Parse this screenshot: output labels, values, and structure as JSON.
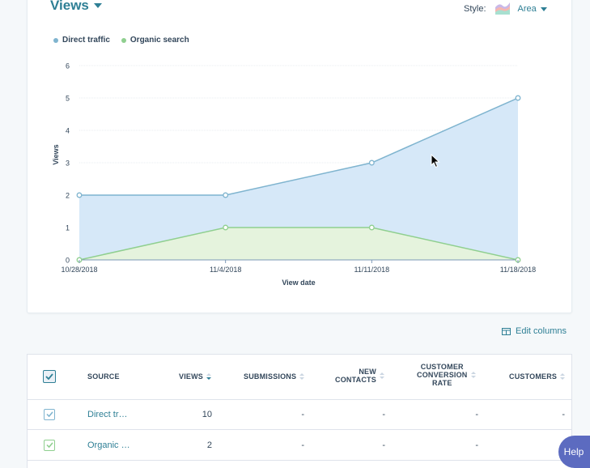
{
  "header": {
    "title": "Views",
    "style_label": "Style:",
    "style_value": "Area",
    "style_icon": "area-chart-icon"
  },
  "chart_data": {
    "type": "area",
    "x": [
      "10/28/2018",
      "11/4/2018",
      "11/11/2018",
      "11/18/2018"
    ],
    "xlabel": "View date",
    "ylabel": "Views",
    "ylim": [
      0,
      6
    ],
    "yticks": [
      "0",
      "1",
      "2",
      "3",
      "4",
      "5",
      "6"
    ],
    "grid": true,
    "legend": "top-left",
    "series": [
      {
        "name": "Direct traffic",
        "values": [
          2,
          2,
          3,
          5
        ],
        "color": "#7fb4cf",
        "fill": "#d6e8f8"
      },
      {
        "name": "Organic search",
        "values": [
          0,
          1,
          1,
          0
        ],
        "color": "#8fcf8f",
        "fill": "#e5f3dd"
      }
    ]
  },
  "toolbar": {
    "edit_columns": "Edit columns",
    "edit_columns_icon": "columns-icon"
  },
  "table": {
    "columns": [
      {
        "label": "SOURCE"
      },
      {
        "label": "VIEWS",
        "sorted": "desc"
      },
      {
        "label": "SUBMISSIONS"
      },
      {
        "label": "NEW\nCONTACTS"
      },
      {
        "label": "CUSTOMER\nCONVERSION\nRATE"
      },
      {
        "label": "CUSTOMERS"
      }
    ],
    "rows": [
      {
        "source": "Direct tr…",
        "views": "10",
        "submissions": "-",
        "new_contacts": "-",
        "conversion_rate": "-",
        "customers": "-",
        "color": "#7fb4cf"
      },
      {
        "source": "Organic …",
        "views": "2",
        "submissions": "-",
        "new_contacts": "-",
        "conversion_rate": "-",
        "customers": "-",
        "color": "#8fcf8f"
      }
    ]
  },
  "help": {
    "label": "Help"
  }
}
